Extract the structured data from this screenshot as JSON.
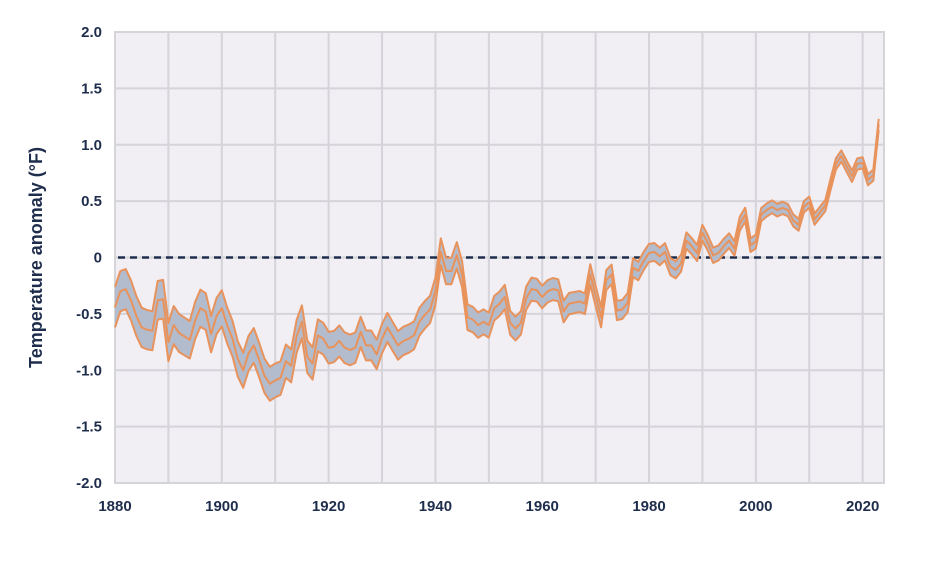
{
  "chart_data": {
    "type": "area",
    "title": "",
    "xlabel": "",
    "ylabel": "Temperature anomaly (°F)",
    "xlim": [
      1880,
      2024
    ],
    "ylim": [
      -2.0,
      2.0
    ],
    "x_ticks": [
      "1880",
      "1900",
      "1920",
      "1940",
      "1960",
      "1980",
      "2000",
      "2020"
    ],
    "y_ticks": [
      "2.0",
      "1.5",
      "1.0",
      "0.5",
      "0",
      "-0.5",
      "-1.0",
      "-1.5",
      "-2.0"
    ],
    "grid": true,
    "reference_line": {
      "y": 0,
      "style": "dashed"
    },
    "colors": {
      "band_fill": "#b3bccd",
      "band_line": "#e8925c",
      "background": "#f1eef4",
      "grid": "#d4d4d9",
      "reference": "#1f2d4d",
      "text": "#1f2d4d"
    },
    "x": [
      1880,
      1881,
      1882,
      1883,
      1884,
      1885,
      1886,
      1887,
      1888,
      1889,
      1890,
      1891,
      1892,
      1893,
      1894,
      1895,
      1896,
      1897,
      1898,
      1899,
      1900,
      1901,
      1902,
      1903,
      1904,
      1905,
      1906,
      1907,
      1908,
      1909,
      1910,
      1911,
      1912,
      1913,
      1914,
      1915,
      1916,
      1917,
      1918,
      1919,
      1920,
      1921,
      1922,
      1923,
      1924,
      1925,
      1926,
      1927,
      1928,
      1929,
      1930,
      1931,
      1932,
      1933,
      1934,
      1935,
      1936,
      1937,
      1938,
      1939,
      1940,
      1941,
      1942,
      1943,
      1944,
      1945,
      1946,
      1947,
      1948,
      1949,
      1950,
      1951,
      1952,
      1953,
      1954,
      1955,
      1956,
      1957,
      1958,
      1959,
      1960,
      1961,
      1962,
      1963,
      1964,
      1965,
      1966,
      1967,
      1968,
      1969,
      1970,
      1971,
      1972,
      1973,
      1974,
      1975,
      1976,
      1977,
      1978,
      1979,
      1980,
      1981,
      1982,
      1983,
      1984,
      1985,
      1986,
      1987,
      1988,
      1989,
      1990,
      1991,
      1992,
      1993,
      1994,
      1995,
      1996,
      1997,
      1998,
      1999,
      2000,
      2001,
      2002,
      2003,
      2004,
      2005,
      2006,
      2007,
      2008,
      2009,
      2010,
      2011,
      2012,
      2013,
      2014,
      2015,
      2016,
      2017,
      2018,
      2019,
      2020,
      2021,
      2022,
      2023
    ],
    "series": [
      {
        "values": [
          -0.44,
          -0.3,
          -0.28,
          -0.38,
          -0.52,
          -0.62,
          -0.64,
          -0.65,
          -0.38,
          -0.37,
          -0.75,
          -0.6,
          -0.67,
          -0.7,
          -0.73,
          -0.56,
          -0.45,
          -0.48,
          -0.68,
          -0.52,
          -0.45,
          -0.6,
          -0.72,
          -0.9,
          -1.0,
          -0.85,
          -0.78,
          -0.91,
          -1.05,
          -1.12,
          -1.09,
          -1.07,
          -0.92,
          -0.96,
          -0.7,
          -0.57,
          -0.88,
          -0.94,
          -0.69,
          -0.72,
          -0.8,
          -0.79,
          -0.74,
          -0.8,
          -0.82,
          -0.8,
          -0.66,
          -0.78,
          -0.78,
          -0.86,
          -0.72,
          -0.62,
          -0.7,
          -0.78,
          -0.74,
          -0.72,
          -0.69,
          -0.57,
          -0.51,
          -0.46,
          -0.3,
          0.05,
          -0.12,
          -0.12,
          0.02,
          -0.15,
          -0.53,
          -0.55,
          -0.6,
          -0.57,
          -0.6,
          -0.45,
          -0.41,
          -0.35,
          -0.58,
          -0.63,
          -0.58,
          -0.36,
          -0.28,
          -0.29,
          -0.35,
          -0.3,
          -0.28,
          -0.29,
          -0.48,
          -0.41,
          -0.4,
          -0.39,
          -0.41,
          -0.15,
          -0.34,
          -0.53,
          -0.2,
          -0.15,
          -0.47,
          -0.46,
          -0.4,
          -0.09,
          -0.12,
          -0.03,
          0.04,
          0.05,
          0.01,
          0.05,
          -0.08,
          -0.11,
          -0.05,
          0.15,
          0.1,
          0.04,
          0.22,
          0.13,
          0.02,
          0.04,
          0.1,
          0.15,
          0.08,
          0.3,
          0.38,
          0.11,
          0.14,
          0.38,
          0.42,
          0.45,
          0.42,
          0.44,
          0.42,
          0.33,
          0.29,
          0.45,
          0.49,
          0.34,
          0.4,
          0.46,
          0.65,
          0.83,
          0.9,
          0.81,
          0.72,
          0.83,
          0.84,
          0.69,
          0.73,
          1.18
        ]
      }
    ]
  }
}
